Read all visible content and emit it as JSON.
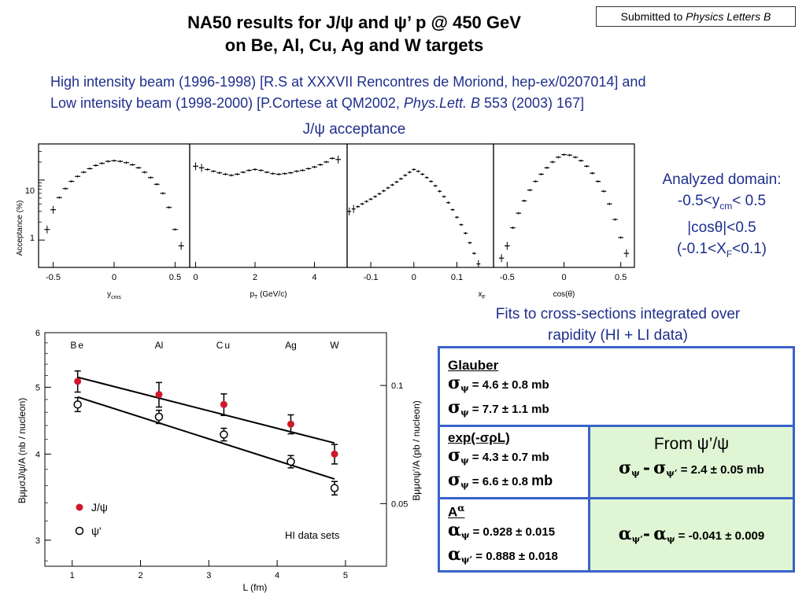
{
  "header": {
    "title_line1": "NA50 results for J/ψ and ψ’ p @ 450 GeV",
    "title_line2": "on Be, Al, Cu, Ag and W targets",
    "submitted_prefix": "Submitted to ",
    "submitted_journal": "Physics Letters B"
  },
  "beam": {
    "line1": "High intensity beam (1996-1998) [R.S at XXXVII Rencontres de Moriond, hep-ex/0207014]  and",
    "line2_a": "Low intensity beam (1998-2000) [P.Cortese at QM2002, ",
    "line2_journal": "Phys.Lett. B",
    "line2_b": " 553 (2003) 167]"
  },
  "acceptance": {
    "title": "J/ψ acceptance",
    "ylabel": "Acceptance (%)",
    "ytick_10": "10",
    "ytick_1": "1",
    "panels": [
      {
        "xlabel": "y",
        "xlabel_sub": "cms",
        "ticks": [
          "-0.5",
          "0",
          "0.5"
        ]
      },
      {
        "xlabel": "p",
        "xlabel_sub": "T",
        "xlabel_rest": " (GeV/c)",
        "ticks": [
          "0",
          "2",
          "4"
        ]
      },
      {
        "xlabel": "x",
        "xlabel_sub": "F",
        "ticks": [
          "-0.1",
          "0",
          "0.1"
        ]
      },
      {
        "xlabel": "cos(θ)",
        "ticks": [
          "-0.5",
          "0",
          "0.5"
        ]
      }
    ]
  },
  "analyzed": {
    "title": "Analyzed domain:",
    "l1_a": "-0.5<y",
    "l1_sub": "cm",
    "l1_b": "< 0.5",
    "l2": "|cosθ|<0.5",
    "l3_a": "(-0.1<X",
    "l3_sub": "F",
    "l3_b": "<0.1)"
  },
  "fits": {
    "line1": "Fits to cross-sections integrated over",
    "line2": "rapidity (HI + LI data)"
  },
  "chart_data": [
    {
      "type": "line",
      "title": "J/ψ acceptance",
      "ylabel": "Acceptance (%)",
      "y_scale": "log",
      "panels": [
        {
          "xlabel": "ycms",
          "xlim": [
            -0.62,
            0.62
          ],
          "x": [
            -0.55,
            -0.5,
            -0.45,
            -0.4,
            -0.35,
            -0.3,
            -0.25,
            -0.2,
            -0.15,
            -0.1,
            -0.05,
            0,
            0.05,
            0.1,
            0.15,
            0.2,
            0.25,
            0.3,
            0.35,
            0.4,
            0.45,
            0.5,
            0.55
          ],
          "y": [
            1.5,
            3.2,
            5.1,
            7.2,
            9.5,
            11.5,
            13.5,
            15.5,
            17.5,
            19,
            20.5,
            21,
            20.5,
            19.5,
            18,
            16,
            13.5,
            11,
            8.5,
            6,
            3.5,
            1.5,
            0.8
          ]
        },
        {
          "xlabel": "pT (GeV/c)",
          "xlim": [
            -0.2,
            5.1
          ],
          "x": [
            0,
            0.2,
            0.4,
            0.6,
            0.8,
            1,
            1.2,
            1.4,
            1.6,
            1.8,
            2,
            2.2,
            2.4,
            2.6,
            2.8,
            3,
            3.2,
            3.4,
            3.6,
            3.8,
            4,
            4.2,
            4.4,
            4.6,
            4.8
          ],
          "y": [
            17,
            16,
            15,
            14,
            13.2,
            12.5,
            12,
            12.5,
            13.5,
            14.5,
            15,
            14.5,
            13.5,
            12.8,
            12.5,
            12.8,
            13.2,
            14,
            14.5,
            15.5,
            16.5,
            18,
            20,
            23,
            22
          ]
        },
        {
          "xlabel": "xF",
          "xlim": [
            -0.155,
            0.185
          ],
          "x": [
            -0.15,
            -0.14,
            -0.13,
            -0.12,
            -0.11,
            -0.1,
            -0.09,
            -0.08,
            -0.07,
            -0.06,
            -0.05,
            -0.04,
            -0.03,
            -0.02,
            -0.01,
            0,
            0.01,
            0.02,
            0.03,
            0.04,
            0.05,
            0.06,
            0.07,
            0.08,
            0.09,
            0.1,
            0.11,
            0.12,
            0.13,
            0.14,
            0.15
          ],
          "y": [
            3,
            3.3,
            3.6,
            4,
            4.4,
            4.8,
            5.3,
            5.9,
            6.6,
            7.4,
            8.3,
            9.3,
            10.5,
            12,
            13.5,
            15,
            14,
            12.5,
            11,
            9.5,
            8,
            6.5,
            5.3,
            4.2,
            3.2,
            2.4,
            1.8,
            1.3,
            0.9,
            0.6,
            0.4
          ]
        },
        {
          "xlabel": "cos(θ)",
          "xlim": [
            -0.62,
            0.62
          ],
          "x": [
            -0.55,
            -0.5,
            -0.45,
            -0.4,
            -0.35,
            -0.3,
            -0.25,
            -0.2,
            -0.15,
            -0.1,
            -0.05,
            0,
            0.05,
            0.1,
            0.15,
            0.2,
            0.25,
            0.3,
            0.35,
            0.4,
            0.45,
            0.5,
            0.55
          ],
          "y": [
            0.5,
            0.8,
            1.6,
            2.8,
            4.5,
            6.8,
            9.5,
            12.5,
            16,
            20,
            24,
            26.5,
            26,
            24,
            21,
            17,
            13,
            9.5,
            6.5,
            4,
            2.2,
            1.1,
            0.6
          ]
        }
      ]
    },
    {
      "type": "scatter",
      "xlabel": "L (fm)",
      "ylabel": "BμμσJ/ψ/A (nb / nucleon)",
      "ylabel_right": "Bμμσψ'/A (pb / nucleon)",
      "xlim": [
        0.6,
        5.6
      ],
      "ylim": [
        2.75,
        6
      ],
      "y_scale": "log",
      "yticks": [
        "3",
        "4",
        "5",
        "6"
      ],
      "xticks": [
        "1",
        "2",
        "3",
        "4",
        "5"
      ],
      "yticks_right": [
        "0.05",
        "0.1"
      ],
      "targets": [
        "Be",
        "Al",
        "Cu",
        "Ag",
        "W"
      ],
      "legend": [
        "J/ψ",
        "ψ'"
      ],
      "annotation": "HI data sets",
      "series": [
        {
          "name": "J/ψ",
          "x": [
            1.08,
            2.27,
            3.22,
            4.2,
            4.84
          ],
          "y": [
            5.1,
            4.88,
            4.72,
            4.42,
            4.0
          ],
          "err": [
            0.18,
            0.2,
            0.17,
            0.14,
            0.13
          ]
        },
        {
          "name": "ψ'",
          "x": [
            1.08,
            2.27,
            3.22,
            4.2,
            4.84
          ],
          "y": [
            4.72,
            4.53,
            4.27,
            3.9,
            3.57
          ],
          "err": [
            0.11,
            0.1,
            0.09,
            0.08,
            0.08
          ]
        }
      ],
      "fit_lines": [
        {
          "x": [
            1.08,
            4.84
          ],
          "y": [
            5.17,
            4.15
          ]
        },
        {
          "x": [
            1.08,
            4.84
          ],
          "y": [
            4.84,
            3.68
          ]
        }
      ]
    }
  ],
  "results": {
    "glauber_header": "Glauber",
    "glauber_l1": "= 4.6 ± 0.8 mb",
    "glauber_l2": "= 7.7 ± 1.1 mb",
    "exp_header": "exp(-σρL)",
    "exp_l1": "= 4.3 ± 0.7 mb",
    "exp_l2_a": "= 6.6 ± 0.8 ",
    "exp_l2_b": "mb",
    "alpha_header": "A",
    "alpha_l1": "= 0.928 ± 0.015",
    "alpha_l2": "= 0.888 ± 0.018",
    "from_ratio": "From ψ’/ψ",
    "diff_sigma": "= 2.4 ± 0.05 mb",
    "diff_alpha": "= -0.041 ± 0.009",
    "sym_sigma": "σ",
    "sym_alpha": "α",
    "sym_psi": "ψ",
    "sym_psip": "ψ’",
    "sym_minus": "-"
  },
  "colors": {
    "accent_blue": "#1f2f8c",
    "box_border": "#3a63c9",
    "green_fill": "#dff5d4",
    "jpsi_red": "#d0182b"
  }
}
